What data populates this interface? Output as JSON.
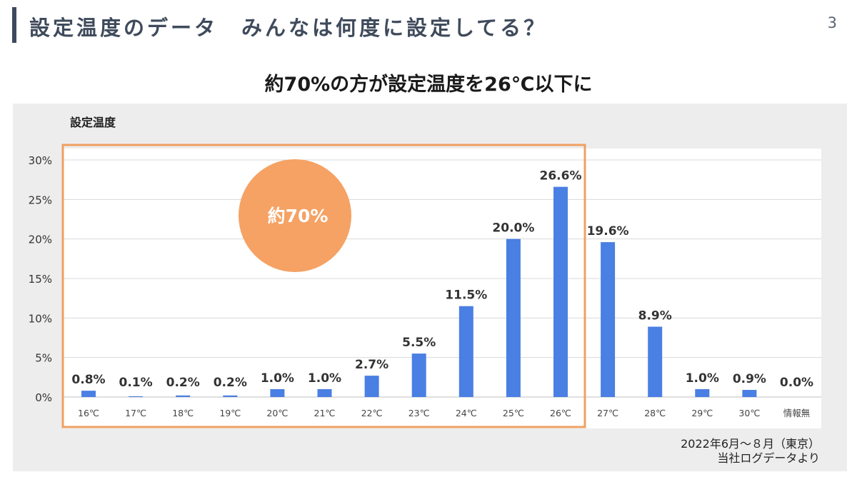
{
  "header": {
    "title": "設定温度のデータ　みんなは何度に設定してる？",
    "page_number": "3"
  },
  "headline": "約70%の方が設定温度を26℃以下に",
  "chart_caption": "設定温度",
  "callout": {
    "text": "約70%",
    "color": "#f5a264"
  },
  "highlight_range": {
    "from": "16℃",
    "to": "26℃",
    "color": "#f0a062"
  },
  "source_note": {
    "line1": "2022年6月～８月（東京）",
    "line2": "当社ログデータより"
  },
  "colors": {
    "bar": "#4a7fe3",
    "panel": "#ededed",
    "header_bar": "#3c4a5c"
  },
  "chart_data": {
    "type": "bar",
    "title": "",
    "xlabel": "",
    "ylabel": "設定温度",
    "categories": [
      "16℃",
      "17℃",
      "18℃",
      "19℃",
      "20℃",
      "21℃",
      "22℃",
      "23℃",
      "24℃",
      "25℃",
      "26℃",
      "27℃",
      "28℃",
      "29℃",
      "30℃",
      "情報無"
    ],
    "values": [
      0.8,
      0.1,
      0.2,
      0.2,
      1.0,
      1.0,
      2.7,
      5.5,
      11.5,
      20.0,
      26.6,
      19.6,
      8.9,
      1.0,
      0.9,
      0.0
    ],
    "value_labels": [
      "0.8%",
      "0.1%",
      "0.2%",
      "0.2%",
      "1.0%",
      "1.0%",
      "2.7%",
      "5.5%",
      "11.5%",
      "20.0%",
      "26.6%",
      "19.6%",
      "8.9%",
      "1.0%",
      "0.9%",
      "0.0%"
    ],
    "ylim": [
      0,
      30
    ],
    "yticks": [
      0,
      5,
      10,
      15,
      20,
      25,
      30
    ],
    "ytick_labels": [
      "0%",
      "5%",
      "10%",
      "15%",
      "20%",
      "25%",
      "30%"
    ],
    "grid": true,
    "legend": "none"
  }
}
